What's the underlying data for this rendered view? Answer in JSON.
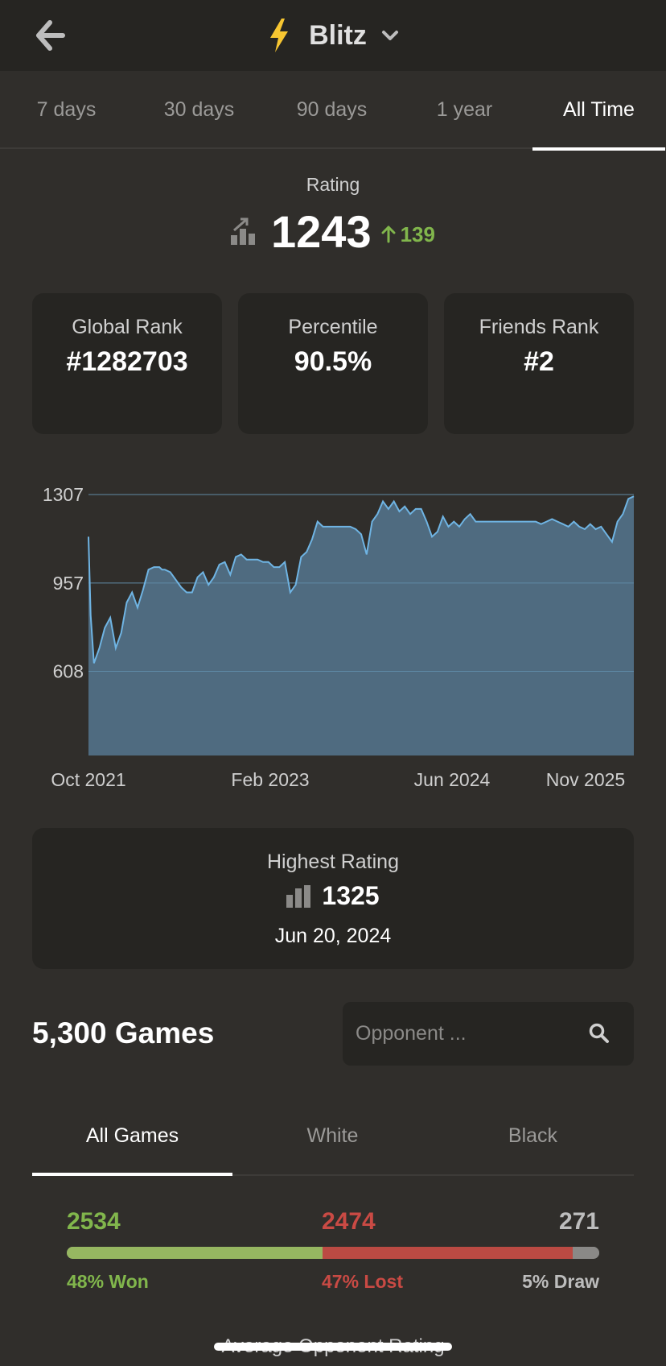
{
  "header": {
    "title": "Blitz"
  },
  "tabs": [
    "7 days",
    "30 days",
    "90 days",
    "1 year",
    "All Time"
  ],
  "rating": {
    "label": "Rating",
    "value": "1243",
    "delta": "139"
  },
  "stats": [
    {
      "label": "Global Rank",
      "value": "#1282703"
    },
    {
      "label": "Percentile",
      "value": "90.5%"
    },
    {
      "label": "Friends Rank",
      "value": "#2"
    }
  ],
  "chart_data": {
    "type": "area",
    "x_tick_labels": [
      "Oct 2021",
      "Feb 2023",
      "Jun 2024",
      "Nov 2025"
    ],
    "y_tick_labels": [
      "1307",
      "957",
      "608"
    ],
    "y_ticks": [
      1307,
      957,
      608
    ],
    "ylim": [
      275,
      1307
    ],
    "xlim": [
      0,
      100
    ],
    "grid": true,
    "series": [
      {
        "color": "#6fb4e3",
        "fill": "#4f6b80",
        "x": [
          0,
          0.4,
          1,
          2,
          3,
          4,
          5,
          6,
          7,
          8,
          9,
          10,
          11,
          12,
          13,
          13.5,
          14,
          15,
          16,
          17,
          18,
          19,
          20,
          21,
          22,
          23,
          24,
          25,
          26,
          27,
          28,
          29,
          30,
          31,
          32,
          33,
          34,
          35,
          36,
          37,
          38,
          39,
          40,
          41,
          42,
          43,
          44,
          45,
          46,
          47,
          48,
          49,
          50,
          51,
          52,
          53,
          54,
          55,
          56,
          57,
          58,
          59,
          60,
          61,
          62,
          63,
          64,
          65,
          66,
          67,
          68,
          69,
          70,
          71,
          72,
          73,
          74,
          75,
          76,
          77,
          78,
          79,
          80,
          81,
          82,
          83,
          84,
          85,
          86,
          87,
          88,
          89,
          90,
          91,
          92,
          93,
          94,
          95,
          96,
          97,
          98,
          99,
          100
        ],
        "values": [
          1140,
          830,
          640,
          700,
          780,
          820,
          700,
          760,
          880,
          920,
          860,
          930,
          1010,
          1020,
          1020,
          1010,
          1010,
          1000,
          970,
          940,
          920,
          920,
          980,
          1000,
          950,
          980,
          1030,
          1040,
          990,
          1060,
          1070,
          1050,
          1050,
          1050,
          1040,
          1040,
          1020,
          1020,
          1040,
          920,
          950,
          1060,
          1080,
          1130,
          1200,
          1180,
          1180,
          1180,
          1180,
          1180,
          1180,
          1170,
          1150,
          1070,
          1200,
          1230,
          1280,
          1250,
          1280,
          1240,
          1260,
          1230,
          1250,
          1250,
          1200,
          1140,
          1160,
          1220,
          1180,
          1200,
          1180,
          1210,
          1230,
          1200,
          1200,
          1200,
          1200,
          1200,
          1200,
          1200,
          1200,
          1200,
          1200,
          1200,
          1200,
          1190,
          1200,
          1210,
          1200,
          1190,
          1180,
          1200,
          1180,
          1170,
          1190,
          1170,
          1180,
          1150,
          1120,
          1200,
          1230,
          1290,
          1300
        ]
      }
    ]
  },
  "highest": {
    "label": "Highest Rating",
    "value": "1325",
    "date": "Jun 20, 2024"
  },
  "games": {
    "title": "5,300 Games",
    "search_placeholder": "Opponent ..."
  },
  "side_tabs": [
    "All Games",
    "White",
    "Black"
  ],
  "results": {
    "won": "2534",
    "lost": "2474",
    "draw": "271",
    "won_pct": "48% Won",
    "lost_pct": "47% Lost",
    "draw_pct": "5% Draw",
    "won_fraction": 0.48,
    "lost_fraction": 0.47
  },
  "avg_label": "Average Opponent Rating",
  "colors": {
    "background": "#302e2b",
    "card": "#262522",
    "accent_win": "#81b64c",
    "accent_loss": "#c94a44",
    "chart_line": "#6fb4e3",
    "bolt": "#f7c631"
  }
}
